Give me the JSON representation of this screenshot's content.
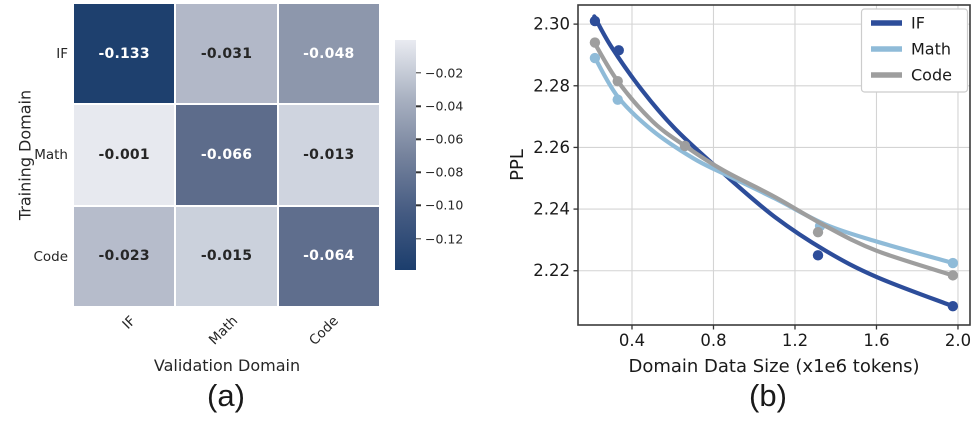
{
  "captions": {
    "a": "(a)",
    "b": "(b)"
  },
  "chart_data": [
    {
      "type": "heatmap",
      "xlabel": "Validation Domain",
      "ylabel": "Training Domain",
      "x_categories": [
        "IF",
        "Math",
        "Code"
      ],
      "y_categories": [
        "IF",
        "Math",
        "Code"
      ],
      "values": [
        [
          -0.133,
          -0.031,
          -0.048
        ],
        [
          -0.001,
          -0.066,
          -0.013
        ],
        [
          -0.023,
          -0.015,
          -0.064
        ]
      ],
      "value_labels": [
        [
          "-0.133",
          "-0.031",
          "-0.048"
        ],
        [
          "-0.001",
          "-0.066",
          "-0.013"
        ],
        [
          "-0.023",
          "-0.015",
          "-0.064"
        ]
      ],
      "cell_colors": [
        [
          "#1e406e",
          "#b2b8c8",
          "#8d97ac"
        ],
        [
          "#e7e9ef",
          "#5d6c8b",
          "#cfd4df"
        ],
        [
          "#b6bccb",
          "#cbd1dc",
          "#5f6e8d"
        ]
      ],
      "annot_colors": {
        "dark": "#262626",
        "light": "#ffffff"
      },
      "colorbar": {
        "vmax": 0.0,
        "vmin": -0.139,
        "tick_labels": [
          "−0.02",
          "−0.04",
          "−0.06",
          "−0.08",
          "−0.10",
          "−0.12"
        ],
        "tick_values": [
          -0.02,
          -0.04,
          -0.06,
          -0.08,
          -0.1,
          -0.12
        ],
        "gradient": [
          "#e9ebf1",
          "#aab2c2",
          "#76839d",
          "#455b82",
          "#1c3e6d"
        ]
      }
    },
    {
      "type": "line",
      "xlabel": "Domain Data Size (x1e6 tokens)",
      "ylabel": "PPL",
      "xlim": [
        0.135,
        2.059
      ],
      "ylim": [
        2.2024,
        2.3062
      ],
      "xticks": [
        0.4,
        0.8,
        1.2,
        1.6,
        2.0
      ],
      "xtick_labels": [
        "0.4",
        "0.8",
        "1.2",
        "1.6",
        "2.0"
      ],
      "yticks": [
        2.22,
        2.24,
        2.26,
        2.28,
        2.3
      ],
      "ytick_labels": [
        "2.22",
        "2.24",
        "2.26",
        "2.28",
        "2.30"
      ],
      "grid": true,
      "legend_position": "upper right",
      "series": [
        {
          "name": "IF",
          "color": "#2d4d9a",
          "points": [
            [
              0.218,
              2.301
            ],
            [
              0.335,
              2.2915
            ],
            [
              1.313,
              2.225
            ],
            [
              1.975,
              2.2085
            ]
          ],
          "curve": [
            [
              0.215,
              2.3025
            ],
            [
              0.3,
              2.2925
            ],
            [
              0.45,
              2.2785
            ],
            [
              0.62,
              2.2655
            ],
            [
              0.85,
              2.2515
            ],
            [
              1.1,
              2.2375
            ],
            [
              1.35,
              2.2265
            ],
            [
              1.6,
              2.218
            ],
            [
              1.975,
              2.2085
            ]
          ]
        },
        {
          "name": "Math",
          "color": "#8fbbd8",
          "points": [
            [
              0.218,
              2.289
            ],
            [
              0.33,
              2.2755
            ],
            [
              1.323,
              2.2345
            ],
            [
              1.975,
              2.2225
            ]
          ],
          "curve": [
            [
              0.215,
              2.2895
            ],
            [
              0.33,
              2.2765
            ],
            [
              0.5,
              2.2655
            ],
            [
              0.7,
              2.2565
            ],
            [
              0.85,
              2.2515
            ],
            [
              1.1,
              2.2435
            ],
            [
              1.35,
              2.235
            ],
            [
              1.6,
              2.2295
            ],
            [
              1.975,
              2.2225
            ]
          ]
        },
        {
          "name": "Code",
          "color": "#9e9e9e",
          "points": [
            [
              0.218,
              2.294
            ],
            [
              0.33,
              2.2815
            ],
            [
              0.66,
              2.2605
            ],
            [
              1.313,
              2.2325
            ],
            [
              1.975,
              2.2185
            ]
          ],
          "curve": [
            [
              0.215,
              2.294
            ],
            [
              0.33,
              2.2815
            ],
            [
              0.5,
              2.2685
            ],
            [
              0.66,
              2.2605
            ],
            [
              0.85,
              2.2525
            ],
            [
              1.1,
              2.244
            ],
            [
              1.35,
              2.2345
            ],
            [
              1.6,
              2.2265
            ],
            [
              1.975,
              2.2185
            ]
          ]
        }
      ]
    }
  ]
}
